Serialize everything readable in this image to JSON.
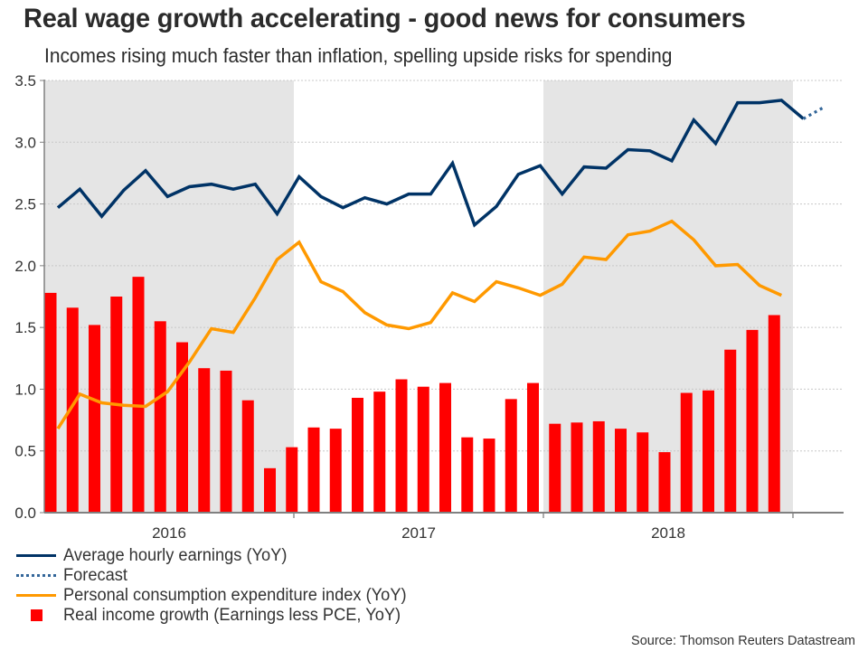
{
  "colors": {
    "earnings": "#003366",
    "forecast": "#336699",
    "pce": "#FF9900",
    "real_income": "#FF0000",
    "shade": "#E5E5E5",
    "grid": "#C8C8C8",
    "axis": "#808080",
    "text": "#333333"
  },
  "chart_data": {
    "type": "bar+line",
    "title": "Real wage growth accelerating - good news for consumers",
    "subtitle": "Incomes rising much faster than inflation, spelling upside risks for spending",
    "source": "Source: Thomson Reuters Datastream",
    "xlabel": "",
    "ylabel": "",
    "ylim": [
      0.0,
      3.5
    ],
    "yticks": [
      "0.0",
      "0.5",
      "1.0",
      "1.5",
      "2.0",
      "2.5",
      "3.0",
      "3.5"
    ],
    "ytick_values": [
      0.0,
      0.5,
      1.0,
      1.5,
      2.0,
      2.5,
      3.0,
      3.5
    ],
    "grid": true,
    "x_periods": [
      "2016",
      "2017",
      "2018"
    ],
    "shaded_periods": [
      "2016",
      "2018"
    ],
    "months_per_period": 12,
    "legend_position": "bottom-left",
    "legend": [
      {
        "name": "Average hourly earnings (YoY)",
        "style": "solid-line",
        "key": "earnings"
      },
      {
        "name": "Forecast",
        "style": "dotted-line",
        "key": "forecast"
      },
      {
        "name": "Personal consumption expenditure index (YoY)",
        "style": "solid-line",
        "key": "pce"
      },
      {
        "name": "Real income growth (Earnings less PCE, YoY)",
        "style": "square",
        "key": "real_income"
      }
    ],
    "series": [
      {
        "name": "Average hourly earnings (YoY)",
        "type": "line",
        "key": "earnings",
        "values": [
          2.47,
          2.62,
          2.4,
          2.61,
          2.77,
          2.56,
          2.64,
          2.66,
          2.62,
          2.66,
          2.42,
          2.72,
          2.56,
          2.47,
          2.55,
          2.5,
          2.58,
          2.58,
          2.83,
          2.33,
          2.48,
          2.74,
          2.81,
          2.58,
          2.8,
          2.79,
          2.94,
          2.93,
          2.85,
          3.18,
          2.99,
          3.32,
          3.32,
          3.34,
          3.19
        ]
      },
      {
        "name": "Forecast",
        "type": "line",
        "key": "forecast",
        "start_index": 34,
        "values": [
          3.19,
          3.29
        ]
      },
      {
        "name": "Personal consumption expenditure index (YoY)",
        "type": "line",
        "key": "pce",
        "values": [
          0.68,
          0.96,
          0.89,
          0.87,
          0.86,
          0.98,
          1.22,
          1.49,
          1.46,
          1.74,
          2.05,
          2.19,
          1.87,
          1.79,
          1.62,
          1.52,
          1.49,
          1.54,
          1.78,
          1.71,
          1.87,
          1.82,
          1.76,
          1.85,
          2.07,
          2.05,
          2.25,
          2.28,
          2.36,
          2.21,
          2.0,
          2.01,
          1.84,
          1.76
        ]
      },
      {
        "name": "Real income growth (Earnings less PCE, YoY)",
        "type": "bar",
        "key": "real_income",
        "values": [
          1.78,
          1.66,
          1.52,
          1.75,
          1.91,
          1.55,
          1.38,
          1.17,
          1.15,
          0.91,
          0.36,
          0.53,
          0.69,
          0.68,
          0.93,
          0.98,
          1.08,
          1.02,
          1.05,
          0.61,
          0.6,
          0.92,
          1.05,
          0.72,
          0.73,
          0.74,
          0.68,
          0.65,
          0.49,
          0.97,
          0.99,
          1.32,
          1.48,
          1.6
        ]
      }
    ]
  }
}
